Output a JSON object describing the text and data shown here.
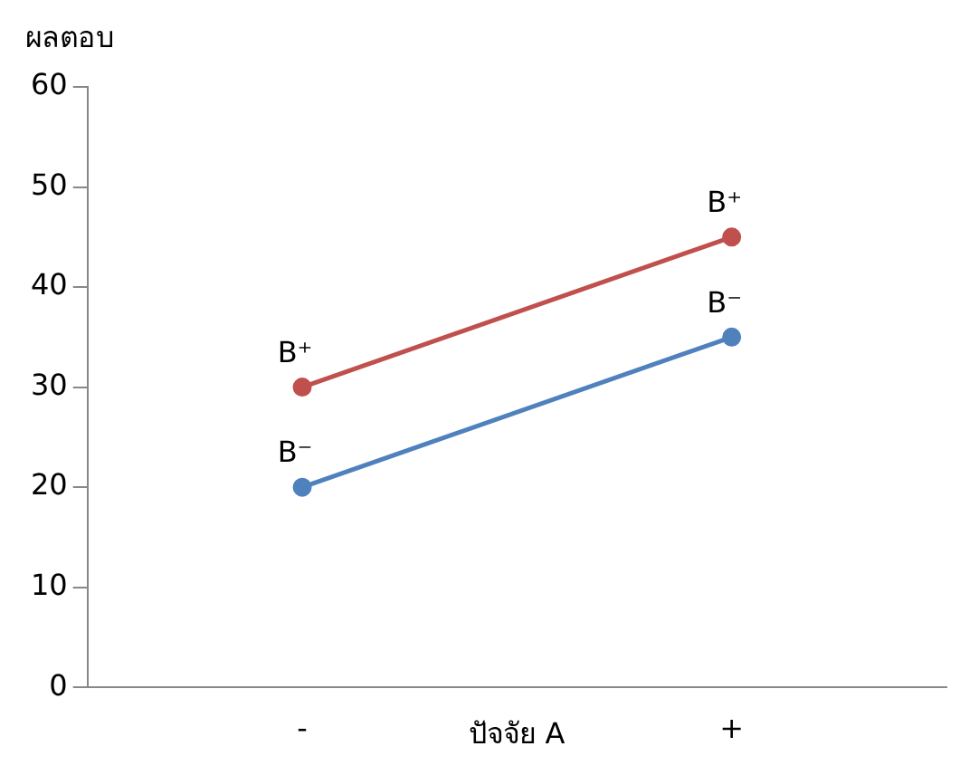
{
  "chart_data": {
    "type": "line",
    "ylabel": "ผลตอบ",
    "xlabel": "ปัจจัย A",
    "categories": [
      "-",
      "+"
    ],
    "series": [
      {
        "name": "B⁺",
        "color": "#c0504d",
        "values": [
          30,
          45
        ]
      },
      {
        "name": "B⁻",
        "color": "#4f81bd",
        "values": [
          20,
          35
        ]
      }
    ],
    "ylim": [
      0,
      60
    ],
    "yticks": [
      0,
      10,
      20,
      30,
      40,
      50,
      60
    ],
    "grid": false,
    "legend": false,
    "marker": "circle",
    "line_style": "solid"
  }
}
